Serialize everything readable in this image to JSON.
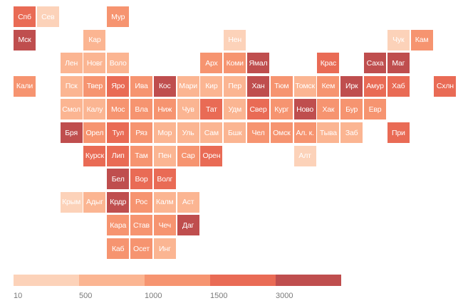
{
  "colors": {
    "c1": "#fcd2b9",
    "c2": "#fbb592",
    "c3": "#f69470",
    "c4": "#e96b55",
    "c5": "#bf4e4e"
  },
  "legend": {
    "steps": [
      "c1",
      "c2",
      "c3",
      "c4",
      "c5"
    ],
    "ticks": [
      "10",
      "500",
      "1000",
      "1500",
      "3000"
    ]
  },
  "regions": [
    {
      "label": "Спб",
      "row": 0,
      "col": 0,
      "shade": "c4"
    },
    {
      "label": "Сев",
      "row": 0,
      "col": 1,
      "shade": "c1"
    },
    {
      "label": "Мур",
      "row": 0,
      "col": 4,
      "shade": "c3"
    },
    {
      "label": "Мск",
      "row": 1,
      "col": 0,
      "shade": "c5"
    },
    {
      "label": "Кар",
      "row": 1,
      "col": 3,
      "shade": "c2"
    },
    {
      "label": "Нен",
      "row": 1,
      "col": 9,
      "shade": "c1"
    },
    {
      "label": "Чук",
      "row": 1,
      "col": 16,
      "shade": "c1"
    },
    {
      "label": "Кам",
      "row": 1,
      "col": 17,
      "shade": "c3"
    },
    {
      "label": "Лен",
      "row": 2,
      "col": 2,
      "shade": "c2"
    },
    {
      "label": "Новг",
      "row": 2,
      "col": 3,
      "shade": "c2"
    },
    {
      "label": "Воло",
      "row": 2,
      "col": 4,
      "shade": "c2"
    },
    {
      "label": "Арх",
      "row": 2,
      "col": 8,
      "shade": "c3"
    },
    {
      "label": "Коми",
      "row": 2,
      "col": 9,
      "shade": "c3"
    },
    {
      "label": "Ямал",
      "row": 2,
      "col": 10,
      "shade": "c5"
    },
    {
      "label": "Крас",
      "row": 2,
      "col": 13,
      "shade": "c4"
    },
    {
      "label": "Саха",
      "row": 2,
      "col": 15,
      "shade": "c5"
    },
    {
      "label": "Маг",
      "row": 2,
      "col": 16,
      "shade": "c5"
    },
    {
      "label": "Кали",
      "row": 3,
      "col": 0,
      "shade": "c3"
    },
    {
      "label": "Пск",
      "row": 3,
      "col": 2,
      "shade": "c2"
    },
    {
      "label": "Твер",
      "row": 3,
      "col": 3,
      "shade": "c3"
    },
    {
      "label": "Яро",
      "row": 3,
      "col": 4,
      "shade": "c4"
    },
    {
      "label": "Ива",
      "row": 3,
      "col": 5,
      "shade": "c3"
    },
    {
      "label": "Кос",
      "row": 3,
      "col": 6,
      "shade": "c5"
    },
    {
      "label": "Мари",
      "row": 3,
      "col": 7,
      "shade": "c2"
    },
    {
      "label": "Кир",
      "row": 3,
      "col": 8,
      "shade": "c2"
    },
    {
      "label": "Пер",
      "row": 3,
      "col": 9,
      "shade": "c2"
    },
    {
      "label": "Хан",
      "row": 3,
      "col": 10,
      "shade": "c5"
    },
    {
      "label": "Тюм",
      "row": 3,
      "col": 11,
      "shade": "c3"
    },
    {
      "label": "Томск",
      "row": 3,
      "col": 12,
      "shade": "c2"
    },
    {
      "label": "Кем",
      "row": 3,
      "col": 13,
      "shade": "c3"
    },
    {
      "label": "Ирк",
      "row": 3,
      "col": 14,
      "shade": "c5"
    },
    {
      "label": "Амур",
      "row": 3,
      "col": 15,
      "shade": "c4"
    },
    {
      "label": "Хаб",
      "row": 3,
      "col": 16,
      "shade": "c4"
    },
    {
      "label": "Схлн",
      "row": 3,
      "col": 18,
      "shade": "c4"
    },
    {
      "label": "Смол",
      "row": 4,
      "col": 2,
      "shade": "c2"
    },
    {
      "label": "Калу",
      "row": 4,
      "col": 3,
      "shade": "c2"
    },
    {
      "label": "Мос",
      "row": 4,
      "col": 4,
      "shade": "c3"
    },
    {
      "label": "Вла",
      "row": 4,
      "col": 5,
      "shade": "c3"
    },
    {
      "label": "Ниж",
      "row": 4,
      "col": 6,
      "shade": "c3"
    },
    {
      "label": "Чув",
      "row": 4,
      "col": 7,
      "shade": "c2"
    },
    {
      "label": "Тат",
      "row": 4,
      "col": 8,
      "shade": "c4"
    },
    {
      "label": "Удм",
      "row": 4,
      "col": 9,
      "shade": "c2"
    },
    {
      "label": "Свер",
      "row": 4,
      "col": 10,
      "shade": "c4"
    },
    {
      "label": "Кург",
      "row": 4,
      "col": 11,
      "shade": "c3"
    },
    {
      "label": "Ново",
      "row": 4,
      "col": 12,
      "shade": "c5"
    },
    {
      "label": "Хак",
      "row": 4,
      "col": 13,
      "shade": "c3"
    },
    {
      "label": "Бур",
      "row": 4,
      "col": 14,
      "shade": "c3"
    },
    {
      "label": "Евр",
      "row": 4,
      "col": 15,
      "shade": "c3"
    },
    {
      "label": "Бря",
      "row": 5,
      "col": 2,
      "shade": "c5"
    },
    {
      "label": "Орел",
      "row": 5,
      "col": 3,
      "shade": "c3"
    },
    {
      "label": "Тул",
      "row": 5,
      "col": 4,
      "shade": "c4"
    },
    {
      "label": "Ряз",
      "row": 5,
      "col": 5,
      "shade": "c3"
    },
    {
      "label": "Мор",
      "row": 5,
      "col": 6,
      "shade": "c2"
    },
    {
      "label": "Уль",
      "row": 5,
      "col": 7,
      "shade": "c2"
    },
    {
      "label": "Сам",
      "row": 5,
      "col": 8,
      "shade": "c2"
    },
    {
      "label": "Бшк",
      "row": 5,
      "col": 9,
      "shade": "c2"
    },
    {
      "label": "Чел",
      "row": 5,
      "col": 10,
      "shade": "c3"
    },
    {
      "label": "Омск",
      "row": 5,
      "col": 11,
      "shade": "c3"
    },
    {
      "label": "Ал. к.",
      "row": 5,
      "col": 12,
      "shade": "c3"
    },
    {
      "label": "Тыва",
      "row": 5,
      "col": 13,
      "shade": "c2"
    },
    {
      "label": "Заб",
      "row": 5,
      "col": 14,
      "shade": "c2"
    },
    {
      "label": "При",
      "row": 5,
      "col": 16,
      "shade": "c4"
    },
    {
      "label": "Курск",
      "row": 6,
      "col": 3,
      "shade": "c4"
    },
    {
      "label": "Лип",
      "row": 6,
      "col": 4,
      "shade": "c4"
    },
    {
      "label": "Там",
      "row": 6,
      "col": 5,
      "shade": "c3"
    },
    {
      "label": "Пен",
      "row": 6,
      "col": 6,
      "shade": "c2"
    },
    {
      "label": "Сар",
      "row": 6,
      "col": 7,
      "shade": "c3"
    },
    {
      "label": "Орен",
      "row": 6,
      "col": 8,
      "shade": "c4"
    },
    {
      "label": "Алт",
      "row": 6,
      "col": 12,
      "shade": "c1"
    },
    {
      "label": "Бел",
      "row": 7,
      "col": 4,
      "shade": "c5"
    },
    {
      "label": "Вор",
      "row": 7,
      "col": 5,
      "shade": "c4"
    },
    {
      "label": "Волг",
      "row": 7,
      "col": 6,
      "shade": "c4"
    },
    {
      "label": "Крым",
      "row": 8,
      "col": 2,
      "shade": "c1"
    },
    {
      "label": "Адыг",
      "row": 8,
      "col": 3,
      "shade": "c2"
    },
    {
      "label": "Крдр",
      "row": 8,
      "col": 4,
      "shade": "c5"
    },
    {
      "label": "Рос",
      "row": 8,
      "col": 5,
      "shade": "c3"
    },
    {
      "label": "Калм",
      "row": 8,
      "col": 6,
      "shade": "c2"
    },
    {
      "label": "Аст",
      "row": 8,
      "col": 7,
      "shade": "c2"
    },
    {
      "label": "Кара",
      "row": 9,
      "col": 4,
      "shade": "c3"
    },
    {
      "label": "Став",
      "row": 9,
      "col": 5,
      "shade": "c3"
    },
    {
      "label": "Чеч",
      "row": 9,
      "col": 6,
      "shade": "c3"
    },
    {
      "label": "Даг",
      "row": 9,
      "col": 7,
      "shade": "c5"
    },
    {
      "label": "Каб",
      "row": 10,
      "col": 4,
      "shade": "c3"
    },
    {
      "label": "Осет",
      "row": 10,
      "col": 5,
      "shade": "c3"
    },
    {
      "label": "Инг",
      "row": 10,
      "col": 6,
      "shade": "c2"
    }
  ]
}
